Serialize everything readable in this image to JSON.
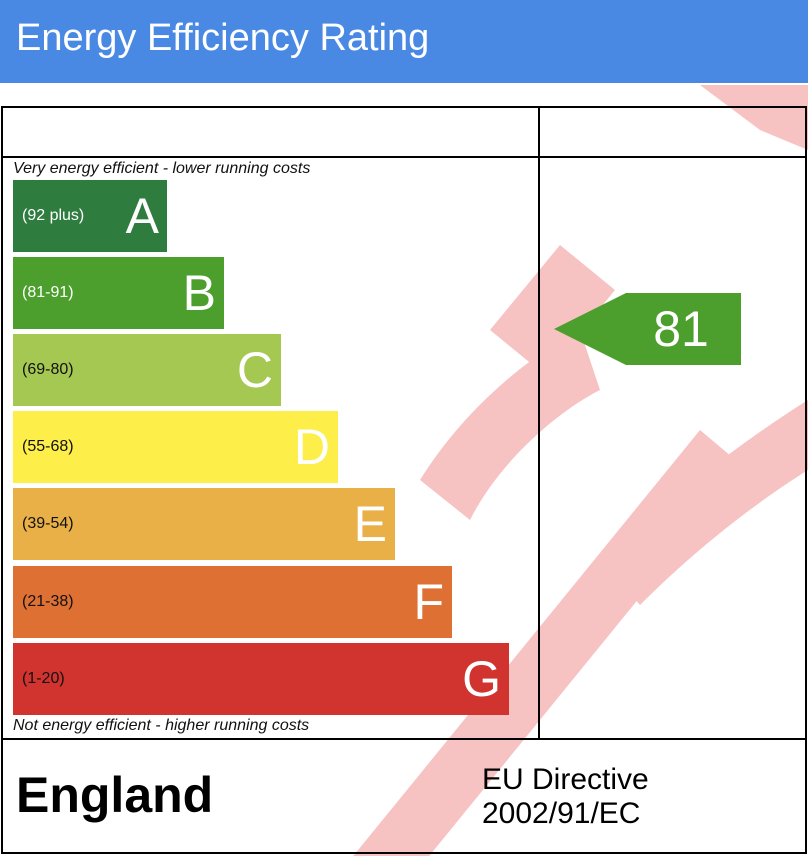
{
  "header": {
    "title": "Energy Efficiency Rating",
    "color": "#4a89e3"
  },
  "captions": {
    "top": "Very energy efficient - lower running costs",
    "bottom": "Not energy efficient - higher running costs"
  },
  "chart_data": {
    "type": "bar",
    "title": "Energy Efficiency Rating",
    "categories": [
      "A",
      "B",
      "C",
      "D",
      "E",
      "F",
      "G"
    ],
    "bands": [
      {
        "letter": "A",
        "range": "(92 plus)",
        "color": "#2e7d3f",
        "range_text_color": "#ffffff"
      },
      {
        "letter": "B",
        "range": "(81-91)",
        "color": "#4c9f2d",
        "range_text_color": "#ffffff"
      },
      {
        "letter": "C",
        "range": "(69-80)",
        "color": "#a5c853",
        "range_text_color": "#111111"
      },
      {
        "letter": "D",
        "range": "(55-68)",
        "color": "#fdee49",
        "range_text_color": "#111111"
      },
      {
        "letter": "E",
        "range": "(39-54)",
        "color": "#e8b047",
        "range_text_color": "#111111"
      },
      {
        "letter": "F",
        "range": "(21-38)",
        "color": "#df7034",
        "range_text_color": "#111111"
      },
      {
        "letter": "G",
        "range": "(1-20)",
        "color": "#d1342e",
        "range_text_color": "#111111"
      }
    ],
    "current": {
      "value": 81,
      "label": "81",
      "band": "B",
      "color": "#4c9f2d"
    }
  },
  "watermark": {
    "text": "DRAFT",
    "color": "#f7c2c2"
  },
  "footer": {
    "country": "England",
    "directive_line1": "EU Directive",
    "directive_line2": "2002/91/EC"
  }
}
